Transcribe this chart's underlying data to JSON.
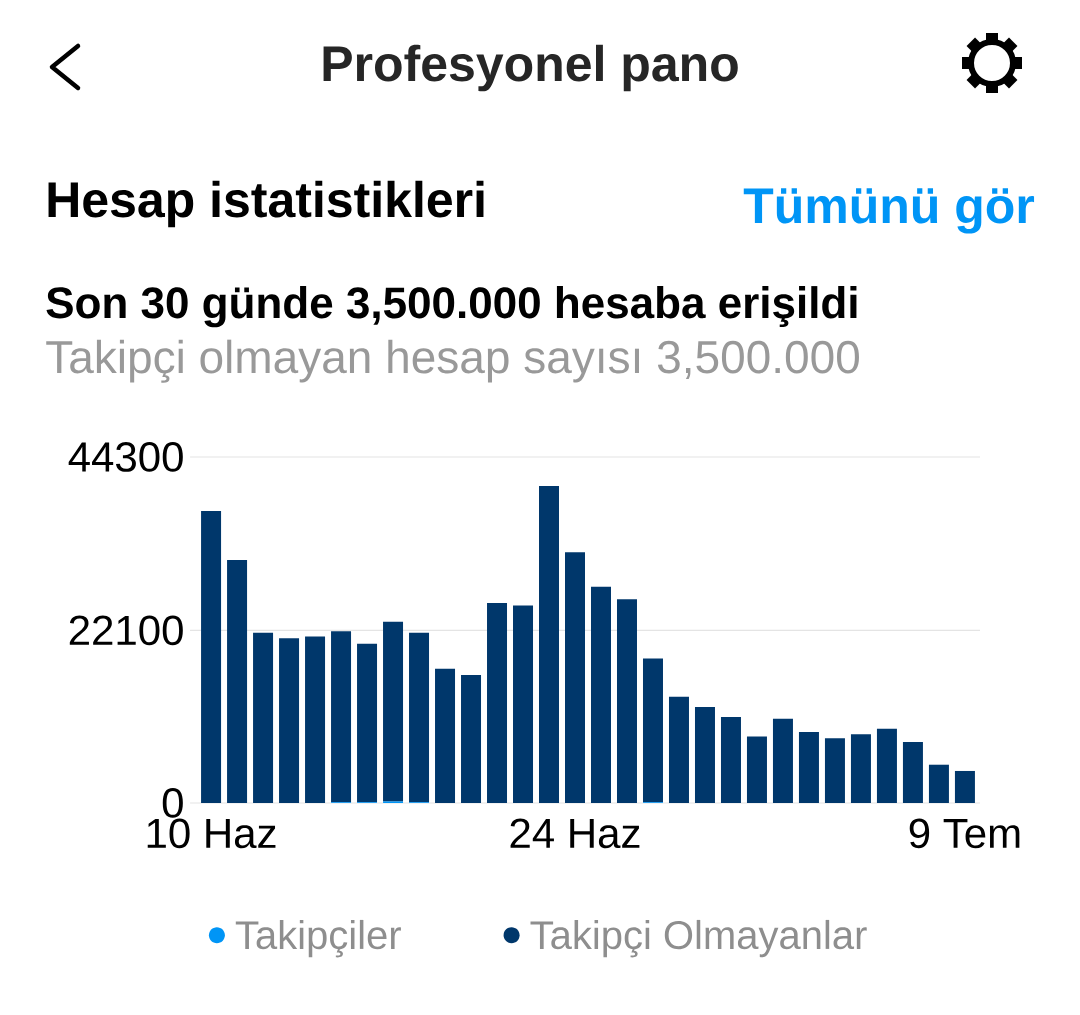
{
  "chart_data": {
    "type": "bar",
    "title": "Profesyonel pano",
    "subtitle": "Hesap istatistikleri",
    "annotations": [
      "Tümünü gör",
      "Son 30 günde 3,500.000 hesaba erişildi",
      "Takipçi olmayan hesap sayısı 3,500.000"
    ],
    "categories": [
      "10 Haz",
      null,
      null,
      null,
      null,
      null,
      null,
      null,
      null,
      null,
      null,
      null,
      null,
      null,
      "24 Haz",
      null,
      null,
      null,
      null,
      null,
      null,
      null,
      null,
      null,
      null,
      null,
      null,
      null,
      null,
      "9 Tem"
    ],
    "series": [
      {
        "name": "Takipçiler",
        "color": "#0095f6",
        "values": [
          0,
          0,
          0,
          0,
          0,
          100,
          100,
          200,
          100,
          0,
          0,
          0,
          0,
          0,
          0,
          0,
          0,
          100,
          0,
          0,
          0,
          0,
          0,
          0,
          0,
          0,
          0,
          0,
          0,
          0
        ]
      },
      {
        "name": "Takipçi Olmayanlar",
        "color": "#00376b",
        "values": [
          37400,
          31100,
          21800,
          21100,
          21300,
          21900,
          20300,
          23000,
          21700,
          17200,
          16400,
          25600,
          25300,
          40600,
          32100,
          27700,
          26100,
          18400,
          13600,
          12300,
          11000,
          8500,
          10800,
          9100,
          8300,
          8800,
          9500,
          7800,
          4900,
          4100
        ]
      }
    ],
    "stacked": true,
    "ylim": [
      0,
      44300
    ],
    "yticks": [
      0,
      22100,
      44300
    ],
    "grid": "y",
    "legend": "bottom"
  }
}
